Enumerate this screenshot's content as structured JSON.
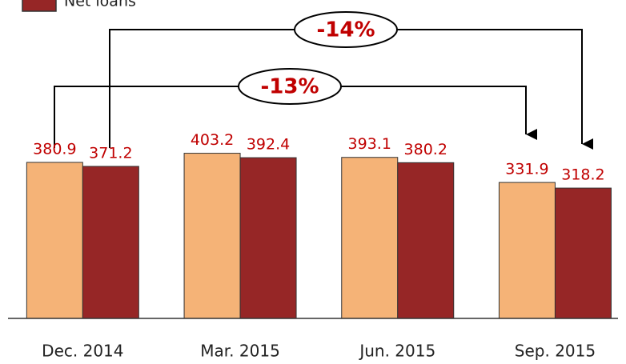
{
  "chart_data": {
    "type": "bar",
    "categories": [
      "Dec. 2014",
      "Mar. 2015",
      "Jun. 2015",
      "Sep. 2015"
    ],
    "series": [
      {
        "color": "#f5b377",
        "values": [
          380.9,
          403.2,
          393.1,
          331.9
        ]
      },
      {
        "name": "Net loans",
        "color": "#962626",
        "values": [
          371.2,
          392.4,
          380.2,
          318.2
        ]
      }
    ],
    "annotations": [
      "-14%",
      "-13%"
    ]
  }
}
